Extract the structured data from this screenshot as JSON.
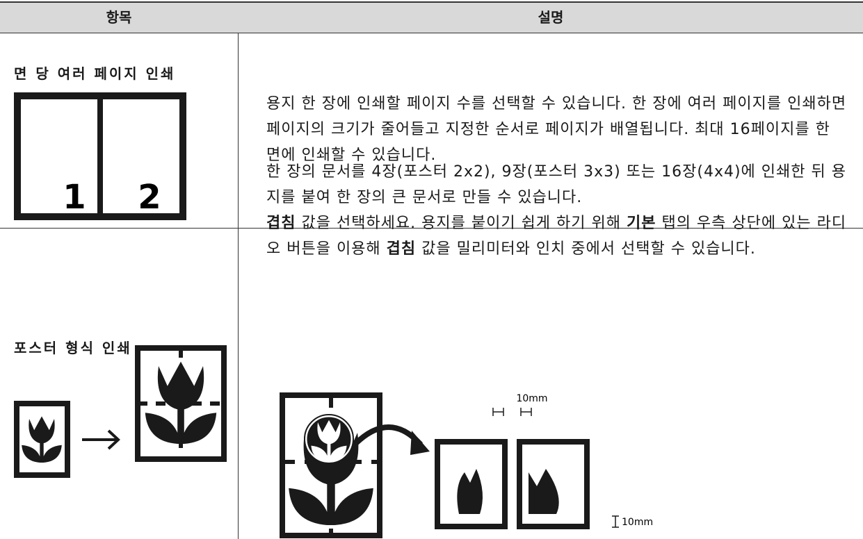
{
  "table": {
    "header": [
      "항목",
      "설명"
    ],
    "rows": [
      {
        "item": "면 당 여러 페이지 인쇄",
        "icon_labels": [
          "1",
          "2"
        ],
        "description": [
          [
            {
              "text": "용지 한 장에 인쇄할 페이지 수를 선택할 수 있습니다. 한 장에 여러 페이지를 인쇄하면 페이지의 크기가 줄어들고 지정한 순서로 페이지가 배열됩니다. 최대 16페이지를 한 면에 인쇄할 수 있습니다."
            }
          ]
        ]
      },
      {
        "item": "포스터 형식 인쇄",
        "description": [
          [
            {
              "text": "한 장의 문서를 4장(포스터 2x2), 9장(포스터 3x3) 또는 16장(4x4)에 인쇄한 뒤 용지를 붙여 한 장의 큰 문서로 만들 수 있습니다."
            }
          ],
          [
            {
              "text": "겹침",
              "bold": true
            },
            {
              "text": " 값을 선택하세요. 용지를 붙이기 쉽게 하기 위해 "
            },
            {
              "text": "기본",
              "bold": true
            },
            {
              "text": " 탭의 우측 상단에 있는 라디오 버튼을 이용해 "
            },
            {
              "text": "겹침",
              "bold": true
            },
            {
              "text": " 값을 밀리미터와 인치 중에서 선택할 수 있습니다."
            }
          ]
        ],
        "figure_labels": [
          "10mm",
          "10mm"
        ]
      }
    ]
  }
}
